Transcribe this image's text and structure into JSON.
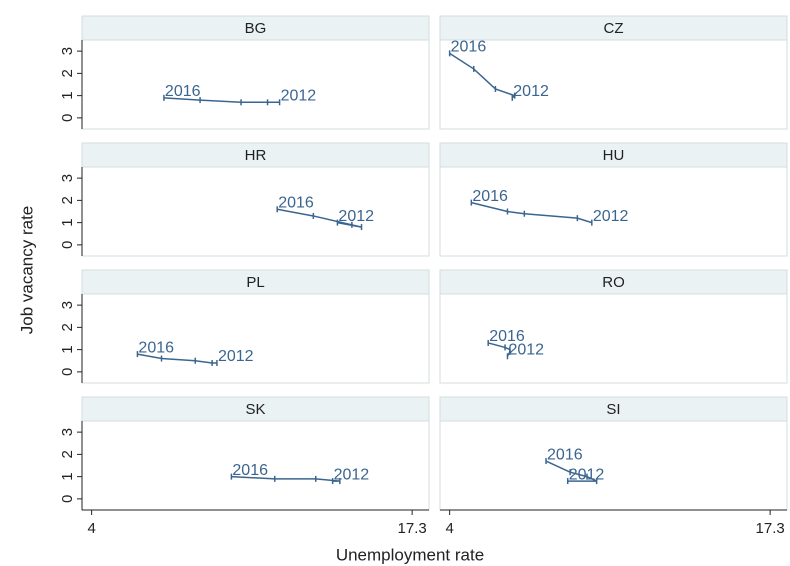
{
  "chart_data": {
    "type": "line",
    "xlabel": "Unemployment rate",
    "ylabel": "Job vacancy rate",
    "xlim": [
      3.6,
      18.0
    ],
    "xticks": [
      4,
      17.3
    ],
    "ylim": [
      -0.5,
      3.5
    ],
    "yticks": [
      0,
      1,
      2,
      3
    ],
    "color": "#3b6590",
    "panels": [
      {
        "title": "BG",
        "x": [
          11.8,
          11.3,
          10.2,
          8.5,
          7.0
        ],
        "values": [
          0.7,
          0.7,
          0.7,
          0.8,
          0.9
        ],
        "labels": [
          "2012",
          null,
          null,
          null,
          "2016"
        ]
      },
      {
        "title": "CZ",
        "x": [
          6.6,
          6.7,
          5.9,
          5.0,
          4.0
        ],
        "values": [
          0.9,
          1.0,
          1.3,
          2.2,
          2.9
        ],
        "labels": [
          "2012",
          null,
          null,
          null,
          "2016"
        ]
      },
      {
        "title": "HR",
        "x": [
          14.2,
          15.2,
          14.8,
          13.2,
          11.7
        ],
        "values": [
          1.0,
          0.8,
          0.9,
          1.3,
          1.6
        ],
        "labels": [
          "2012",
          null,
          null,
          null,
          "2016"
        ]
      },
      {
        "title": "HU",
        "x": [
          9.9,
          9.3,
          7.1,
          6.4,
          4.9
        ],
        "values": [
          1.0,
          1.2,
          1.4,
          1.5,
          1.9
        ],
        "labels": [
          "2012",
          null,
          null,
          null,
          "2016"
        ]
      },
      {
        "title": "PL",
        "x": [
          9.2,
          9.0,
          8.3,
          6.9,
          5.9
        ],
        "values": [
          0.4,
          0.4,
          0.5,
          0.6,
          0.8
        ],
        "labels": [
          "2012",
          null,
          null,
          null,
          "2016"
        ]
      },
      {
        "title": "RO",
        "x": [
          6.4,
          6.5,
          6.5,
          6.3,
          5.6
        ],
        "values": [
          0.7,
          0.9,
          1.0,
          1.1,
          1.3
        ],
        "labels": [
          "2012",
          null,
          null,
          null,
          "2016"
        ]
      },
      {
        "title": "SK",
        "x": [
          14.0,
          14.3,
          13.3,
          11.6,
          9.8
        ],
        "values": [
          0.8,
          0.8,
          0.9,
          0.9,
          1.0
        ],
        "labels": [
          "2012",
          null,
          null,
          null,
          "2016"
        ]
      },
      {
        "title": "SI",
        "x": [
          8.9,
          10.1,
          9.7,
          9.0,
          8.0
        ],
        "values": [
          0.8,
          0.8,
          1.0,
          1.2,
          1.7
        ],
        "labels": [
          "2012",
          null,
          null,
          null,
          "2016"
        ]
      }
    ]
  }
}
